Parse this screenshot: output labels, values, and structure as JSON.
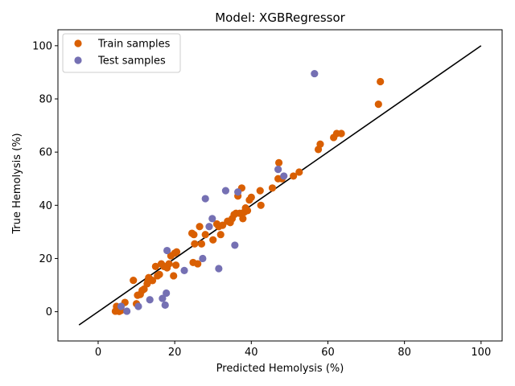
{
  "chart_data": {
    "type": "scatter",
    "title": "Model: XGBRegressor",
    "xlabel": "Predicted Hemolysis (%)",
    "ylabel": "True Hemolysis (%)",
    "xlim": [
      -10.5,
      105.5
    ],
    "ylim": [
      -11,
      106
    ],
    "xticks": [
      0,
      20,
      40,
      60,
      80,
      100
    ],
    "yticks": [
      0,
      20,
      40,
      60,
      80,
      100
    ],
    "grid": false,
    "legend_position": "upper-left",
    "identity_line": {
      "x": [
        -5,
        100
      ],
      "y": [
        -5,
        100
      ],
      "color": "#000000"
    },
    "series": [
      {
        "name": "Train samples",
        "color": "#d95f02",
        "points": [
          [
            4.5,
            0.2
          ],
          [
            5,
            1
          ],
          [
            5.2,
            0.3
          ],
          [
            4.8,
            2
          ],
          [
            6,
            0.5
          ],
          [
            5.5,
            0.1
          ],
          [
            7,
            3.5
          ],
          [
            9.2,
            11.8
          ],
          [
            10,
            3
          ],
          [
            10.3,
            6.2
          ],
          [
            11,
            6.5
          ],
          [
            11.5,
            8
          ],
          [
            12,
            8.5
          ],
          [
            12.8,
            10.5
          ],
          [
            13,
            11.5
          ],
          [
            13.2,
            12.8
          ],
          [
            13.8,
            12
          ],
          [
            14.2,
            11.7
          ],
          [
            15,
            17
          ],
          [
            15.5,
            13.5
          ],
          [
            16,
            14
          ],
          [
            16.5,
            18
          ],
          [
            17.2,
            17
          ],
          [
            18,
            16.5
          ],
          [
            18.5,
            18
          ],
          [
            19,
            21
          ],
          [
            19.7,
            13.5
          ],
          [
            20,
            22
          ],
          [
            20.3,
            17.5
          ],
          [
            20.5,
            22.5
          ],
          [
            24.5,
            29.5
          ],
          [
            25,
            29
          ],
          [
            25.2,
            25.5
          ],
          [
            24.8,
            18.5
          ],
          [
            26,
            18
          ],
          [
            26.5,
            32
          ],
          [
            27,
            25.5
          ],
          [
            28,
            29
          ],
          [
            30,
            27
          ],
          [
            31,
            33
          ],
          [
            31.5,
            32
          ],
          [
            32,
            29
          ],
          [
            32.5,
            32.5
          ],
          [
            33.8,
            34
          ],
          [
            34.5,
            33.5
          ],
          [
            35,
            35
          ],
          [
            35.5,
            36.5
          ],
          [
            36,
            37
          ],
          [
            36.5,
            43.5
          ],
          [
            37,
            37
          ],
          [
            37.5,
            46.5
          ],
          [
            37.8,
            35
          ],
          [
            38.2,
            37.5
          ],
          [
            38.5,
            39
          ],
          [
            39,
            38
          ],
          [
            39.5,
            42
          ],
          [
            40,
            43
          ],
          [
            42.3,
            45.5
          ],
          [
            42.5,
            40
          ],
          [
            45.5,
            46.5
          ],
          [
            47,
            50
          ],
          [
            47.2,
            56
          ],
          [
            48,
            50
          ],
          [
            51,
            51
          ],
          [
            52.5,
            52.5
          ],
          [
            57.5,
            61
          ],
          [
            58,
            63
          ],
          [
            61.5,
            65.5
          ],
          [
            62.3,
            67
          ],
          [
            63.5,
            67
          ],
          [
            73.2,
            78
          ],
          [
            73.7,
            86.5
          ]
        ]
      },
      {
        "name": "Test samples",
        "color": "#7570b3",
        "points": [
          [
            6,
            2
          ],
          [
            7.5,
            0.2
          ],
          [
            10.5,
            2
          ],
          [
            13.5,
            4.5
          ],
          [
            16.8,
            5
          ],
          [
            17.5,
            2.5
          ],
          [
            17.8,
            7
          ],
          [
            18,
            23
          ],
          [
            22.5,
            15.5
          ],
          [
            27.3,
            20
          ],
          [
            28,
            42.5
          ],
          [
            29,
            32
          ],
          [
            29.8,
            35
          ],
          [
            31.5,
            16.2
          ],
          [
            33.3,
            45.5
          ],
          [
            35.7,
            25
          ],
          [
            36.5,
            45
          ],
          [
            47,
            53.5
          ],
          [
            48.5,
            51
          ],
          [
            56.5,
            89.5
          ]
        ]
      }
    ]
  }
}
